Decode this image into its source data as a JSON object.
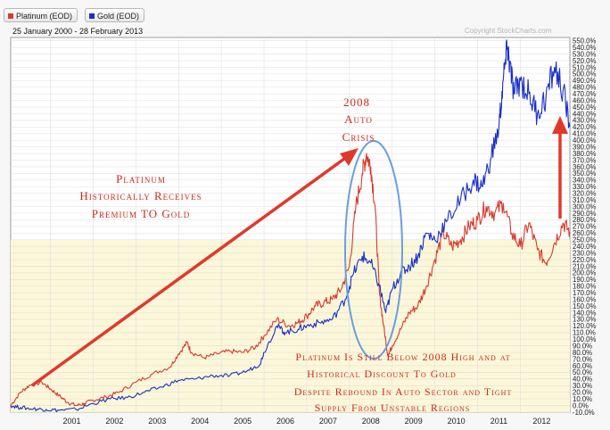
{
  "legend": {
    "platinum_label": "Platinum (EOD)",
    "gold_label": "Gold (EOD)",
    "platinum_color": "#d93a2b",
    "gold_color": "#1a2fc9"
  },
  "date_range": "25 January 2000 - 28 February 2013",
  "copyright": "Copyright  StockCharts.com",
  "annotations": {
    "premium": [
      "Platinum",
      "Historically Receives",
      "Premium TO  Gold"
    ],
    "crisis": [
      "2008",
      "Auto",
      "Crisis"
    ],
    "discount": [
      "Platinum Is Still Below 2008 High and at",
      "Historical Discount To Gold",
      "Despite Rebound In Auto Sector and Tight",
      "Supply From Unstable Regions"
    ]
  },
  "chart_data": {
    "type": "line",
    "x_unit": "year",
    "y_unit": "%",
    "xlim": [
      2000.07,
      2013.16
    ],
    "ylim": [
      -10,
      555
    ],
    "y_ticks": [
      -10,
      0,
      10,
      20,
      30,
      40,
      50,
      60,
      70,
      80,
      90,
      100,
      110,
      120,
      130,
      140,
      150,
      160,
      170,
      180,
      190,
      200,
      210,
      220,
      230,
      240,
      250,
      260,
      270,
      280,
      290,
      300,
      310,
      320,
      330,
      340,
      350,
      360,
      370,
      380,
      390,
      400,
      410,
      420,
      430,
      440,
      450,
      460,
      470,
      480,
      490,
      500,
      510,
      520,
      530,
      540,
      550
    ],
    "x_ticks": [
      "2001",
      "2002",
      "2003",
      "2004",
      "2005",
      "2006",
      "2007",
      "2008",
      "2009",
      "2010",
      "2011",
      "2012"
    ],
    "grid": true,
    "series": [
      {
        "name": "Platinum (EOD)",
        "color": "#d93a2b",
        "points": [
          [
            2000.07,
            0
          ],
          [
            2000.3,
            20
          ],
          [
            2000.5,
            30
          ],
          [
            2000.8,
            35
          ],
          [
            2001.0,
            25
          ],
          [
            2001.2,
            15
          ],
          [
            2001.4,
            5
          ],
          [
            2001.6,
            0
          ],
          [
            2001.8,
            3
          ],
          [
            2002.0,
            8
          ],
          [
            2002.3,
            13
          ],
          [
            2002.6,
            20
          ],
          [
            2003.0,
            35
          ],
          [
            2003.4,
            48
          ],
          [
            2003.8,
            58
          ],
          [
            2004.0,
            78
          ],
          [
            2004.2,
            95
          ],
          [
            2004.3,
            80
          ],
          [
            2004.6,
            72
          ],
          [
            2004.9,
            78
          ],
          [
            2005.2,
            82
          ],
          [
            2005.5,
            80
          ],
          [
            2005.8,
            88
          ],
          [
            2006.0,
            105
          ],
          [
            2006.3,
            130
          ],
          [
            2006.6,
            120
          ],
          [
            2006.8,
            125
          ],
          [
            2007.0,
            135
          ],
          [
            2007.2,
            150
          ],
          [
            2007.4,
            155
          ],
          [
            2007.6,
            160
          ],
          [
            2007.8,
            175
          ],
          [
            2008.0,
            210
          ],
          [
            2008.15,
            300
          ],
          [
            2008.3,
            350
          ],
          [
            2008.4,
            380
          ],
          [
            2008.5,
            360
          ],
          [
            2008.6,
            300
          ],
          [
            2008.7,
            170
          ],
          [
            2008.8,
            120
          ],
          [
            2008.9,
            75
          ],
          [
            2009.0,
            90
          ],
          [
            2009.2,
            115
          ],
          [
            2009.4,
            140
          ],
          [
            2009.6,
            150
          ],
          [
            2009.8,
            180
          ],
          [
            2010.0,
            220
          ],
          [
            2010.2,
            260
          ],
          [
            2010.4,
            240
          ],
          [
            2010.6,
            250
          ],
          [
            2010.8,
            270
          ],
          [
            2011.0,
            280
          ],
          [
            2011.2,
            300
          ],
          [
            2011.4,
            290
          ],
          [
            2011.6,
            305
          ],
          [
            2011.8,
            260
          ],
          [
            2012.0,
            240
          ],
          [
            2012.2,
            275
          ],
          [
            2012.4,
            235
          ],
          [
            2012.6,
            215
          ],
          [
            2012.8,
            245
          ],
          [
            2013.0,
            275
          ],
          [
            2013.16,
            262
          ]
        ]
      },
      {
        "name": "Gold (EOD)",
        "color": "#1a2fc9",
        "points": [
          [
            2000.07,
            0
          ],
          [
            2000.3,
            -3
          ],
          [
            2000.6,
            -5
          ],
          [
            2000.9,
            -6
          ],
          [
            2001.2,
            -7
          ],
          [
            2001.6,
            -6
          ],
          [
            2002.0,
            3
          ],
          [
            2002.4,
            10
          ],
          [
            2002.8,
            12
          ],
          [
            2003.2,
            20
          ],
          [
            2003.6,
            28
          ],
          [
            2004.0,
            38
          ],
          [
            2004.4,
            40
          ],
          [
            2004.8,
            45
          ],
          [
            2005.2,
            45
          ],
          [
            2005.6,
            52
          ],
          [
            2005.9,
            62
          ],
          [
            2006.0,
            80
          ],
          [
            2006.3,
            120
          ],
          [
            2006.5,
            110
          ],
          [
            2006.8,
            115
          ],
          [
            2007.0,
            120
          ],
          [
            2007.3,
            125
          ],
          [
            2007.6,
            130
          ],
          [
            2007.9,
            160
          ],
          [
            2008.1,
            200
          ],
          [
            2008.3,
            225
          ],
          [
            2008.5,
            215
          ],
          [
            2008.7,
            180
          ],
          [
            2008.85,
            140
          ],
          [
            2009.0,
            175
          ],
          [
            2009.2,
            200
          ],
          [
            2009.4,
            210
          ],
          [
            2009.6,
            225
          ],
          [
            2009.8,
            260
          ],
          [
            2010.0,
            250
          ],
          [
            2010.3,
            280
          ],
          [
            2010.6,
            310
          ],
          [
            2010.9,
            340
          ],
          [
            2011.1,
            330
          ],
          [
            2011.3,
            370
          ],
          [
            2011.5,
            420
          ],
          [
            2011.6,
            490
          ],
          [
            2011.7,
            540
          ],
          [
            2011.75,
            515
          ],
          [
            2011.85,
            470
          ],
          [
            2012.0,
            490
          ],
          [
            2012.2,
            470
          ],
          [
            2012.4,
            440
          ],
          [
            2012.6,
            465
          ],
          [
            2012.8,
            510
          ],
          [
            2013.0,
            475
          ],
          [
            2013.16,
            420
          ]
        ]
      }
    ]
  }
}
